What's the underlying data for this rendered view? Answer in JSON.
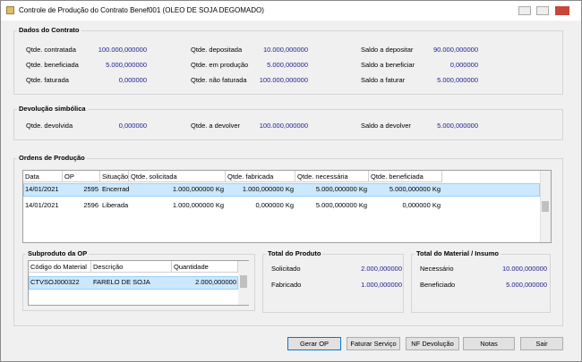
{
  "window": {
    "title": "Controle de Produção do Contrato Benef001 (OLEO DE SOJA DEGOMADO)"
  },
  "contract": {
    "title": "Dados do Contrato",
    "fields": [
      {
        "label": "Qtde. contratada",
        "value": "100.000,000000"
      },
      {
        "label": "Qtde. depositada",
        "value": "10.000,000000"
      },
      {
        "label": "Saldo a depositar",
        "value": "90.000,000000"
      },
      {
        "label": "Qtde. beneficiada",
        "value": "5.000,000000"
      },
      {
        "label": "Qtde. em produção",
        "value": "5.000,000000"
      },
      {
        "label": "Saldo a beneficiar",
        "value": "0,000000"
      },
      {
        "label": "Qtde. faturada",
        "value": "0,000000"
      },
      {
        "label": "Qtde. não faturada",
        "value": "100.000,000000"
      },
      {
        "label": "Saldo a faturar",
        "value": "5.000,000000"
      }
    ]
  },
  "devolution": {
    "title": "Devolução simbólica",
    "fields": [
      {
        "label": "Qtde. devolvida",
        "value": "0,000000"
      },
      {
        "label": "Qtde. a devolver",
        "value": "100.000,000000"
      },
      {
        "label": "Saldo a devolver",
        "value": "5.000,000000"
      }
    ]
  },
  "orders": {
    "title": "Ordens de Produção",
    "columns": [
      "Data",
      "OP",
      "Situação",
      "Qtde. solicitada",
      "Qtde. fabricada",
      "Qtde. necessária",
      "Qtde. beneficiada"
    ],
    "rows": [
      [
        "14/01/2021",
        "2595",
        "Encerrada",
        "1.000,000000 Kg",
        "1.000,000000 Kg",
        "5.000,000000 Kg",
        "5.000,000000 Kg"
      ],
      [
        "14/01/2021",
        "2596",
        "Liberada",
        "1.000,000000 Kg",
        "0,000000 Kg",
        "5.000,000000 Kg",
        "0,000000 Kg"
      ]
    ]
  },
  "byproduct": {
    "title": "Subproduto da OP",
    "columns": [
      "Código do Material",
      "Descrição",
      "Quantidade"
    ],
    "rows": [
      [
        "CTVSOJ000322",
        "FARELO DE SOJA",
        "2.000,000000"
      ]
    ]
  },
  "product_total": {
    "title": "Total do Produto",
    "fields": [
      {
        "label": "Solicitado",
        "value": "2.000,000000"
      },
      {
        "label": "Fabricado",
        "value": "1.000,000000"
      }
    ]
  },
  "material_total": {
    "title": "Total do Material / Insumo",
    "fields": [
      {
        "label": "Necessário",
        "value": "10.000,000000"
      },
      {
        "label": "Beneficiado",
        "value": "5.000,000000"
      }
    ]
  },
  "buttons": [
    "Gerar OP",
    "Faturar Serviço",
    "NF Devolução",
    "Notas",
    "Sair"
  ]
}
